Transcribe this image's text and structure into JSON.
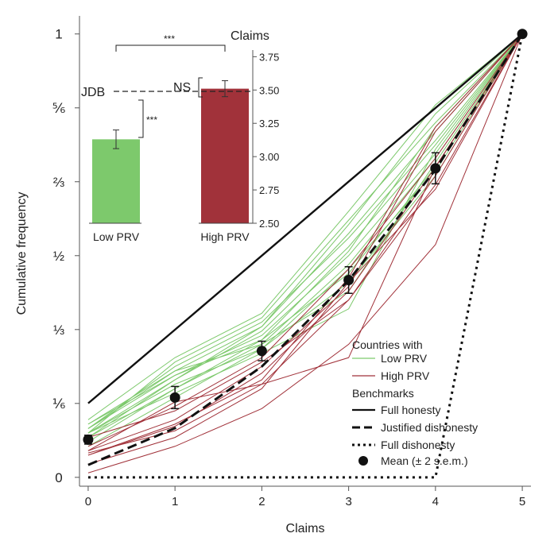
{
  "chart_data": [
    {
      "type": "line",
      "xlabel": "Claims",
      "ylabel": "Cumulative frequency",
      "x": [
        0,
        1,
        2,
        3,
        4,
        5
      ],
      "xlim": [
        -0.1,
        5.1
      ],
      "ylim": [
        -0.02,
        1.03
      ],
      "x_ticks": [
        "0",
        "1",
        "2",
        "3",
        "4",
        "5"
      ],
      "y_ticks": [
        {
          "value": 0,
          "label": "0"
        },
        {
          "value": 0.1667,
          "label": "⅙"
        },
        {
          "value": 0.3333,
          "label": "⅓"
        },
        {
          "value": 0.5,
          "label": "½"
        },
        {
          "value": 0.6667,
          "label": "⅔"
        },
        {
          "value": 0.8333,
          "label": "⅚"
        },
        {
          "value": 1,
          "label": "1"
        }
      ],
      "grid": false,
      "legend": {
        "placement": "bottom-right",
        "group1_title": "Countries with",
        "low_label": "Low PRV",
        "high_label": "High PRV",
        "group2_title": "Benchmarks",
        "full_honesty_label": "Full honesty",
        "justified_label": "Justified dishonesty",
        "full_dishonesty_label": "Full dishonesty",
        "mean_label": "Mean (± 2 s.e.m.)"
      },
      "benchmarks": {
        "full_honesty": [
          0.167,
          0.333,
          0.5,
          0.667,
          0.833,
          1
        ],
        "justified_dishonesty": [
          0.028,
          0.111,
          0.25,
          0.444,
          0.694,
          1
        ],
        "full_dishonesty": [
          0,
          0,
          0,
          0,
          0,
          1
        ]
      },
      "mean": {
        "values": [
          0.085,
          0.18,
          0.285,
          0.445,
          0.697,
          1
        ],
        "err": [
          0.01,
          0.025,
          0.022,
          0.03,
          0.035,
          0
        ]
      },
      "low_prv_series": [
        {
          "values": [
            0.13,
            0.27,
            0.37,
            0.6,
            0.84,
            1
          ]
        },
        {
          "values": [
            0.11,
            0.24,
            0.34,
            0.55,
            0.78,
            1
          ]
        },
        {
          "values": [
            0.1,
            0.22,
            0.33,
            0.52,
            0.75,
            1
          ]
        },
        {
          "values": [
            0.1,
            0.26,
            0.36,
            0.58,
            0.8,
            1
          ]
        },
        {
          "values": [
            0.09,
            0.2,
            0.3,
            0.48,
            0.72,
            1
          ]
        },
        {
          "values": [
            0.12,
            0.23,
            0.32,
            0.5,
            0.73,
            1
          ]
        },
        {
          "values": [
            0.08,
            0.2,
            0.31,
            0.46,
            0.7,
            1
          ]
        },
        {
          "values": [
            0.11,
            0.25,
            0.35,
            0.54,
            0.76,
            1
          ]
        },
        {
          "values": [
            0.1,
            0.21,
            0.29,
            0.44,
            0.68,
            1
          ]
        },
        {
          "values": [
            0.12,
            0.24,
            0.3,
            0.42,
            0.71,
            1
          ]
        },
        {
          "values": [
            0.09,
            0.22,
            0.34,
            0.57,
            0.82,
            1
          ]
        },
        {
          "values": [
            0.1,
            0.19,
            0.28,
            0.38,
            0.74,
            1
          ]
        },
        {
          "values": [
            0.07,
            0.18,
            0.29,
            0.47,
            0.69,
            1
          ]
        },
        {
          "values": [
            0.11,
            0.23,
            0.31,
            0.51,
            0.79,
            1
          ]
        }
      ],
      "high_prv_series": [
        {
          "values": [
            0.055,
            0.105,
            0.21,
            0.4,
            0.66,
            1
          ]
        },
        {
          "values": [
            0.05,
            0.115,
            0.235,
            0.42,
            0.7,
            1
          ]
        },
        {
          "values": [
            0.03,
            0.09,
            0.2,
            0.44,
            0.65,
            1
          ]
        },
        {
          "values": [
            0.06,
            0.13,
            0.25,
            0.43,
            0.78,
            1
          ]
        },
        {
          "values": [
            0.01,
            0.07,
            0.155,
            0.3,
            0.525,
            1
          ]
        },
        {
          "values": [
            0.06,
            0.17,
            0.21,
            0.27,
            0.7,
            1
          ]
        },
        {
          "values": [
            0.09,
            0.15,
            0.26,
            0.4,
            0.68,
            1
          ]
        },
        {
          "values": [
            0.07,
            0.16,
            0.27,
            0.47,
            0.72,
            1
          ]
        },
        {
          "values": [
            0.05,
            0.12,
            0.22,
            0.45,
            0.79,
            1
          ]
        }
      ]
    },
    {
      "type": "bar",
      "ylabel": "Claims",
      "categories": [
        "Low PRV",
        "High PRV"
      ],
      "values": [
        3.13,
        3.51
      ],
      "err": [
        0.07,
        0.06
      ],
      "colors": [
        "#7dc96c",
        "#a1323a"
      ],
      "ylim": [
        2.5,
        3.8
      ],
      "y_ticks": [
        "2.50",
        "2.75",
        "3.00",
        "3.25",
        "3.50",
        "3.75"
      ],
      "reference_line": {
        "label": "JDB",
        "value": 3.49
      },
      "annotations": {
        "between_bars": "***",
        "low_vs_jdb": "***",
        "high_vs_jdb": "NS"
      }
    }
  ]
}
